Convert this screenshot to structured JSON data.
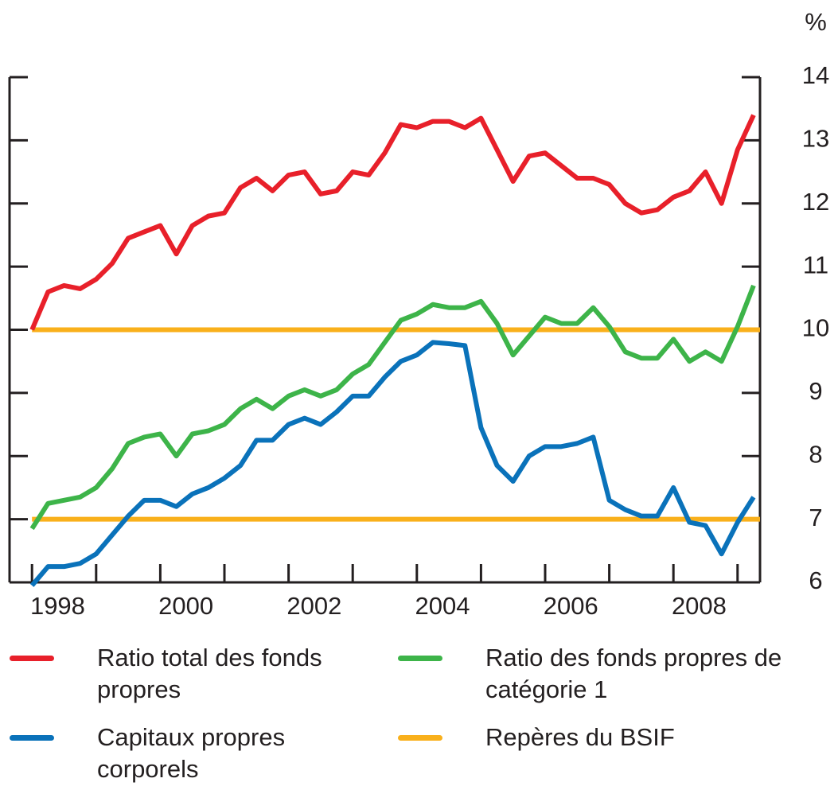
{
  "chart_data": {
    "type": "line",
    "y_unit": "%",
    "x": [
      1998,
      1998.25,
      1998.5,
      1998.75,
      1999,
      1999.25,
      1999.5,
      1999.75,
      2000,
      2000.25,
      2000.5,
      2000.75,
      2001,
      2001.25,
      2001.5,
      2001.75,
      2002,
      2002.25,
      2002.5,
      2002.75,
      2003,
      2003.25,
      2003.5,
      2003.75,
      2004,
      2004.25,
      2004.5,
      2004.75,
      2005,
      2005.25,
      2005.5,
      2005.75,
      2006,
      2006.25,
      2006.5,
      2006.75,
      2007,
      2007.25,
      2007.5,
      2007.75,
      2008,
      2008.25,
      2008.5,
      2008.75,
      2009,
      2009.25
    ],
    "series": [
      {
        "name": "Ratio total des fonds propres",
        "color": "#e8202a",
        "values": [
          10.0,
          10.6,
          10.7,
          10.65,
          10.8,
          11.05,
          11.45,
          11.55,
          11.65,
          11.2,
          11.65,
          11.8,
          11.85,
          12.25,
          12.4,
          12.2,
          12.45,
          12.5,
          12.15,
          12.2,
          12.5,
          12.45,
          12.8,
          13.25,
          13.2,
          13.3,
          13.3,
          13.2,
          13.35,
          12.85,
          12.35,
          12.75,
          12.8,
          12.6,
          12.4,
          12.4,
          12.3,
          12.0,
          11.85,
          11.9,
          12.1,
          12.2,
          12.5,
          12.0,
          12.85,
          13.4
        ]
      },
      {
        "name": "Ratio des fonds propres de catégorie 1",
        "color": "#3db449",
        "values": [
          6.85,
          7.25,
          7.3,
          7.35,
          7.5,
          7.8,
          8.2,
          8.3,
          8.35,
          8.0,
          8.35,
          8.4,
          8.5,
          8.75,
          8.9,
          8.75,
          8.95,
          9.05,
          8.95,
          9.05,
          9.3,
          9.45,
          9.8,
          10.15,
          10.25,
          10.4,
          10.35,
          10.35,
          10.45,
          10.1,
          9.6,
          9.9,
          10.2,
          10.1,
          10.1,
          10.35,
          10.05,
          9.65,
          9.55,
          9.55,
          9.85,
          9.5,
          9.65,
          9.5,
          10.05,
          10.7
        ]
      },
      {
        "name": "Capitaux propres corporels",
        "color": "#0a72ba",
        "values": [
          5.95,
          6.25,
          6.25,
          6.3,
          6.45,
          6.75,
          7.05,
          7.3,
          7.3,
          7.2,
          7.4,
          7.5,
          7.65,
          7.85,
          8.25,
          8.25,
          8.5,
          8.6,
          8.5,
          8.7,
          8.95,
          8.95,
          9.25,
          9.5,
          9.6,
          9.8,
          9.78,
          9.75,
          8.45,
          7.85,
          7.6,
          8.0,
          8.15,
          8.15,
          8.2,
          8.3,
          7.3,
          7.15,
          7.05,
          7.05,
          7.5,
          6.95,
          6.9,
          6.45,
          6.95,
          7.35
        ]
      }
    ],
    "benchmarks": {
      "name": "Repères du BSIF",
      "color": "#f9b01b",
      "values": [
        10,
        7
      ]
    },
    "xlim": [
      1997.65,
      2009.35
    ],
    "xticks": [
      1998,
      1999,
      2000,
      2001,
      2002,
      2003,
      2004,
      2005,
      2006,
      2007,
      2008,
      2009
    ],
    "xtick_labels": [
      {
        "value": 1998.4,
        "label": "1998"
      },
      {
        "value": 2000.4,
        "label": "2000"
      },
      {
        "value": 2002.4,
        "label": "2002"
      },
      {
        "value": 2004.4,
        "label": "2004"
      },
      {
        "value": 2006.4,
        "label": "2006"
      },
      {
        "value": 2008.4,
        "label": "2008"
      }
    ],
    "ylim": [
      6,
      14
    ],
    "yticks": [
      6,
      7,
      8,
      9,
      10,
      11,
      12,
      13,
      14
    ],
    "grid": false
  }
}
